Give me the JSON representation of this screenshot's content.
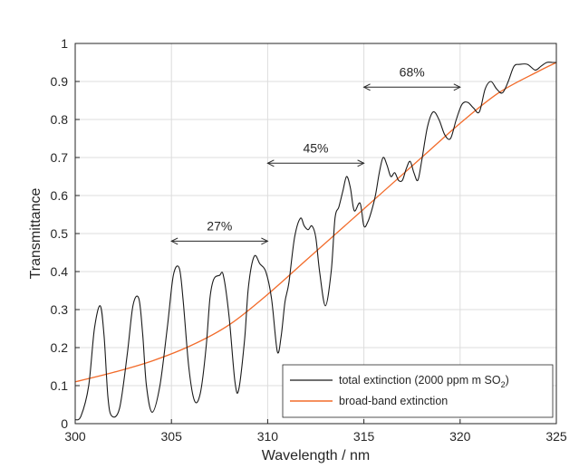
{
  "chart_data": {
    "type": "line",
    "title": "",
    "xlabel": "Wavelength / nm",
    "ylabel": "Transmittance",
    "xlim": [
      300,
      325
    ],
    "ylim": [
      0,
      1
    ],
    "grid": true,
    "legend_position": "bottom-right",
    "xticks": [
      "300",
      "305",
      "310",
      "315",
      "320",
      "325"
    ],
    "yticks": [
      "0",
      "0.1",
      "0.2",
      "0.3",
      "0.4",
      "0.5",
      "0.6",
      "0.7",
      "0.8",
      "0.9",
      "1"
    ],
    "series": [
      {
        "name": "total extinction (2000 ppm m SO2)",
        "legend_main": "total extinction (2000 ppm m SO",
        "legend_sub": "2",
        "legend_tail": ")",
        "color": "#1a1a1a",
        "x": [
          300.0,
          300.3,
          300.7,
          301.0,
          301.3,
          301.5,
          301.7,
          301.9,
          302.3,
          302.7,
          303.0,
          303.3,
          303.5,
          303.7,
          304.0,
          304.4,
          304.8,
          305.1,
          305.4,
          305.6,
          305.9,
          306.2,
          306.5,
          306.8,
          307.0,
          307.2,
          307.5,
          307.7,
          308.0,
          308.3,
          308.5,
          308.8,
          309.0,
          309.3,
          309.6,
          309.9,
          310.2,
          310.5,
          310.7,
          310.9,
          311.1,
          311.4,
          311.7,
          311.9,
          312.1,
          312.3,
          312.5,
          312.7,
          313.0,
          313.3,
          313.5,
          313.7,
          313.9,
          314.1,
          314.3,
          314.5,
          314.8,
          315.0,
          315.2,
          315.4,
          315.6,
          315.8,
          316.0,
          316.2,
          316.4,
          316.6,
          316.8,
          317.0,
          317.2,
          317.4,
          317.6,
          317.8,
          318.0,
          318.3,
          318.6,
          318.9,
          319.2,
          319.5,
          319.8,
          320.1,
          320.4,
          320.7,
          321.0,
          321.3,
          321.6,
          321.9,
          322.2,
          322.5,
          322.8,
          323.1,
          323.5,
          323.9,
          324.2,
          324.5,
          324.8,
          325.0
        ],
        "y": [
          0.01,
          0.02,
          0.1,
          0.25,
          0.31,
          0.23,
          0.07,
          0.02,
          0.04,
          0.18,
          0.31,
          0.33,
          0.24,
          0.1,
          0.03,
          0.1,
          0.26,
          0.39,
          0.41,
          0.33,
          0.15,
          0.06,
          0.08,
          0.2,
          0.33,
          0.38,
          0.39,
          0.39,
          0.28,
          0.11,
          0.09,
          0.22,
          0.36,
          0.44,
          0.42,
          0.4,
          0.33,
          0.19,
          0.23,
          0.32,
          0.37,
          0.49,
          0.54,
          0.52,
          0.51,
          0.52,
          0.49,
          0.4,
          0.31,
          0.4,
          0.54,
          0.57,
          0.61,
          0.65,
          0.62,
          0.56,
          0.58,
          0.52,
          0.53,
          0.56,
          0.6,
          0.66,
          0.7,
          0.68,
          0.65,
          0.66,
          0.64,
          0.64,
          0.67,
          0.69,
          0.66,
          0.64,
          0.69,
          0.78,
          0.82,
          0.8,
          0.76,
          0.75,
          0.8,
          0.84,
          0.845,
          0.83,
          0.82,
          0.88,
          0.9,
          0.88,
          0.87,
          0.9,
          0.94,
          0.945,
          0.945,
          0.93,
          0.94,
          0.95,
          0.95,
          0.95
        ]
      },
      {
        "name": "broad-band extinction",
        "color": "#f26b2a",
        "x": [
          300,
          302,
          304,
          306,
          308,
          310,
          312,
          314,
          316,
          318,
          320,
          322,
          324,
          325
        ],
        "y": [
          0.11,
          0.135,
          0.165,
          0.205,
          0.26,
          0.34,
          0.43,
          0.52,
          0.61,
          0.7,
          0.79,
          0.87,
          0.925,
          0.95
        ]
      }
    ],
    "annotations": [
      {
        "label": "27%",
        "x_start": 305,
        "x_end": 310,
        "y": 0.48
      },
      {
        "label": "45%",
        "x_start": 310,
        "x_end": 315,
        "y": 0.685
      },
      {
        "label": "68%",
        "x_start": 315,
        "x_end": 320,
        "y": 0.885
      }
    ]
  }
}
